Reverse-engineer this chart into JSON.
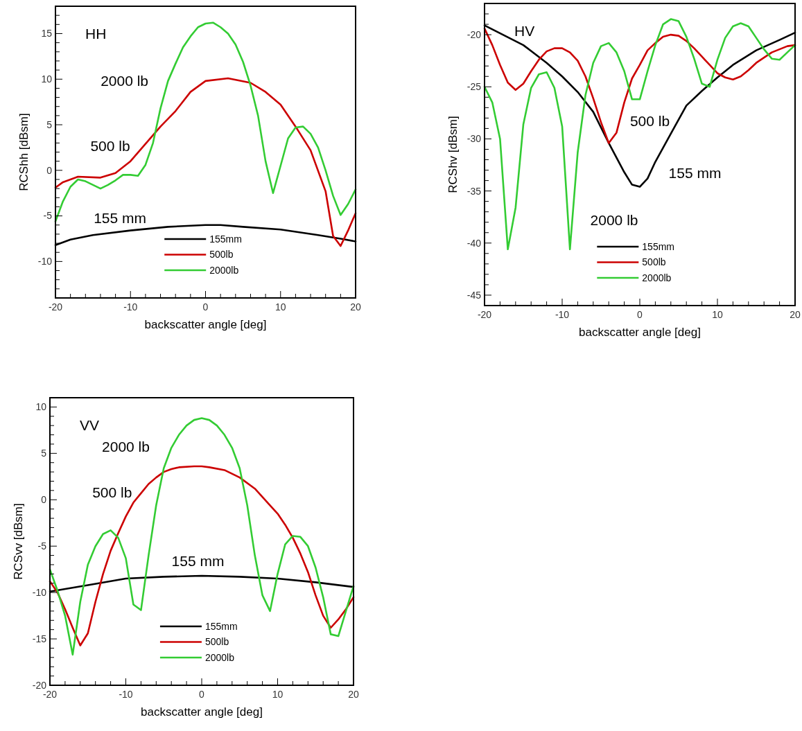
{
  "chart_data": [
    {
      "type": "line",
      "title": "HH",
      "xlabel": "backscatter angle [deg]",
      "ylabel": "RCShh [dBsm]",
      "legend": "bottom",
      "marker": "none",
      "line_style": "solid",
      "grid": false,
      "xlim": [
        -20,
        20
      ],
      "xticks": [
        -20,
        {
          "value": -18,
          "label": null
        },
        {
          "value": -16,
          "label": null
        },
        {
          "value": -14,
          "label": null
        },
        {
          "value": -12,
          "label": null
        },
        -10,
        {
          "value": -8,
          "label": null
        },
        {
          "value": -6,
          "label": null
        },
        {
          "value": -4,
          "label": null
        },
        {
          "value": -2,
          "label": null
        },
        0,
        {
          "value": 2,
          "label": null
        },
        {
          "value": 4,
          "label": null
        },
        {
          "value": 6,
          "label": null
        },
        {
          "value": 8,
          "label": null
        },
        10,
        {
          "value": 12,
          "label": null
        },
        {
          "value": 14,
          "label": null
        },
        {
          "value": 16,
          "label": null
        },
        {
          "value": 18,
          "label": null
        },
        20
      ],
      "ylim": [
        -14,
        18
      ],
      "yticks": [
        {
          "value": -14,
          "label": null
        },
        {
          "value": -13,
          "label": null
        },
        {
          "value": -12,
          "label": null
        },
        {
          "value": -11,
          "label": null
        },
        -10,
        {
          "value": -9,
          "label": null
        },
        {
          "value": -8,
          "label": null
        },
        {
          "value": -7,
          "label": null
        },
        {
          "value": -6,
          "label": null
        },
        -5,
        {
          "value": -4,
          "label": null
        },
        {
          "value": -3,
          "label": null
        },
        {
          "value": -2,
          "label": null
        },
        {
          "value": -1,
          "label": null
        },
        0,
        {
          "value": 1,
          "label": null
        },
        {
          "value": 2,
          "label": null
        },
        {
          "value": 3,
          "label": null
        },
        {
          "value": 4,
          "label": null
        },
        5,
        {
          "value": 6,
          "label": null
        },
        {
          "value": 7,
          "label": null
        },
        {
          "value": 8,
          "label": null
        },
        {
          "value": 9,
          "label": null
        },
        10,
        {
          "value": 11,
          "label": null
        },
        {
          "value": 12,
          "label": null
        },
        {
          "value": 13,
          "label": null
        },
        {
          "value": 14,
          "label": null
        },
        15,
        {
          "value": 16,
          "label": null
        },
        {
          "value": 17,
          "label": null
        },
        {
          "value": 18,
          "label": null
        }
      ],
      "annotations": [
        "2000 lb",
        "500 lb",
        "155 mm"
      ],
      "series": [
        {
          "name": "155mm",
          "color": "#000000",
          "x": [
            -20,
            -18,
            -15,
            -10,
            -5,
            0,
            2,
            5,
            10,
            15,
            18,
            20
          ],
          "values": [
            -8.2,
            -7.6,
            -7.1,
            -6.6,
            -6.2,
            -6.0,
            -6.0,
            -6.2,
            -6.5,
            -7.1,
            -7.5,
            -7.8
          ]
        },
        {
          "name": "500lb",
          "color": "#cc0000",
          "x": [
            -20,
            -19,
            -17,
            -14,
            -12,
            -10,
            -8,
            -6,
            -4,
            -2,
            0,
            3,
            6,
            8,
            10,
            12,
            14,
            16,
            17,
            18,
            19,
            20
          ],
          "values": [
            -1.9,
            -1.3,
            -0.7,
            -0.8,
            -0.3,
            1.0,
            2.9,
            4.8,
            6.5,
            8.6,
            9.8,
            10.1,
            9.6,
            8.6,
            7.2,
            4.8,
            2.2,
            -2.3,
            -7.2,
            -8.3,
            -6.6,
            -4.7
          ]
        },
        {
          "name": "2000lb",
          "color": "#33cc33",
          "x": [
            -20,
            -19,
            -18,
            -17,
            -16,
            -15,
            -14,
            -13,
            -12,
            -11,
            -10,
            -9,
            -8,
            -7,
            -6,
            -5,
            -4,
            -3,
            -2,
            -1,
            0,
            1,
            2,
            3,
            4,
            5,
            6,
            7,
            8,
            9,
            10,
            11,
            12,
            13,
            14,
            15,
            16,
            17,
            18,
            19,
            20
          ],
          "values": [
            -5.6,
            -3.4,
            -1.8,
            -1.0,
            -1.2,
            -1.6,
            -2.0,
            -1.6,
            -1.1,
            -0.5,
            -0.5,
            -0.6,
            0.6,
            3.0,
            6.8,
            9.8,
            11.7,
            13.5,
            14.7,
            15.7,
            16.1,
            16.2,
            15.7,
            15.0,
            13.8,
            11.9,
            9.3,
            6.0,
            1.0,
            -2.5,
            0.5,
            3.5,
            4.7,
            4.8,
            4.0,
            2.5,
            0.0,
            -2.8,
            -4.9,
            -3.7,
            -2.1
          ]
        }
      ]
    },
    {
      "type": "line",
      "title": "HV",
      "xlabel": "backscatter angle [deg]",
      "ylabel": "RCShv [dBsm]",
      "legend": "bottom",
      "marker": "none",
      "line_style": "solid",
      "grid": false,
      "xlim": [
        -20,
        20
      ],
      "xticks": [
        -20,
        {
          "value": -18,
          "label": null
        },
        {
          "value": -16,
          "label": null
        },
        {
          "value": -14,
          "label": null
        },
        {
          "value": -12,
          "label": null
        },
        -10,
        {
          "value": -8,
          "label": null
        },
        {
          "value": -6,
          "label": null
        },
        {
          "value": -4,
          "label": null
        },
        {
          "value": -2,
          "label": null
        },
        0,
        {
          "value": 2,
          "label": null
        },
        {
          "value": 4,
          "label": null
        },
        {
          "value": 6,
          "label": null
        },
        {
          "value": 8,
          "label": null
        },
        10,
        {
          "value": 12,
          "label": null
        },
        {
          "value": 14,
          "label": null
        },
        {
          "value": 16,
          "label": null
        },
        {
          "value": 18,
          "label": null
        },
        20
      ],
      "ylim": [
        -46,
        -17
      ],
      "yticks": [
        {
          "value": -46,
          "label": null
        },
        -45,
        {
          "value": -44,
          "label": null
        },
        {
          "value": -43,
          "label": null
        },
        {
          "value": -42,
          "label": null
        },
        {
          "value": -41,
          "label": null
        },
        -40,
        {
          "value": -39,
          "label": null
        },
        {
          "value": -38,
          "label": null
        },
        {
          "value": -37,
          "label": null
        },
        {
          "value": -36,
          "label": null
        },
        -35,
        {
          "value": -34,
          "label": null
        },
        {
          "value": -33,
          "label": null
        },
        {
          "value": -32,
          "label": null
        },
        {
          "value": -31,
          "label": null
        },
        -30,
        {
          "value": -29,
          "label": null
        },
        {
          "value": -28,
          "label": null
        },
        {
          "value": -27,
          "label": null
        },
        {
          "value": -26,
          "label": null
        },
        -25,
        {
          "value": -24,
          "label": null
        },
        {
          "value": -23,
          "label": null
        },
        {
          "value": -22,
          "label": null
        },
        {
          "value": -21,
          "label": null
        },
        -20,
        {
          "value": -19,
          "label": null
        },
        {
          "value": -18,
          "label": null
        },
        {
          "value": -17,
          "label": null
        }
      ],
      "annotations": [
        "500 lb",
        "155 mm",
        "2000 lb"
      ],
      "series": [
        {
          "name": "155mm",
          "color": "#000000",
          "x": [
            -20,
            -15,
            -12,
            -10,
            -8,
            -6,
            -4,
            -2,
            -1,
            0,
            1,
            2,
            4,
            6,
            8,
            10,
            12,
            15,
            18,
            20
          ],
          "values": [
            -19.1,
            -21.0,
            -22.7,
            -24.0,
            -25.5,
            -27.4,
            -30.4,
            -33.2,
            -34.4,
            -34.6,
            -33.8,
            -32.2,
            -29.5,
            -26.8,
            -25.4,
            -24.1,
            -22.9,
            -21.5,
            -20.5,
            -19.8
          ]
        },
        {
          "name": "500lb",
          "color": "#cc0000",
          "x": [
            -20,
            -19,
            -18,
            -17,
            -16,
            -15,
            -14,
            -13,
            -12,
            -11,
            -10,
            -9,
            -8,
            -7,
            -6,
            -5,
            -4,
            -3,
            -2,
            -1,
            0,
            1,
            2,
            3,
            4,
            5,
            6,
            7,
            8,
            9,
            10,
            11,
            12,
            13,
            14,
            15,
            16,
            17,
            18,
            19,
            20
          ],
          "values": [
            -19.4,
            -21.0,
            -22.9,
            -24.6,
            -25.3,
            -24.7,
            -23.5,
            -22.4,
            -21.6,
            -21.3,
            -21.3,
            -21.7,
            -22.5,
            -24.0,
            -26.1,
            -28.4,
            -30.4,
            -29.4,
            -26.5,
            -24.2,
            -22.9,
            -21.5,
            -20.8,
            -20.2,
            -20.0,
            -20.1,
            -20.6,
            -21.3,
            -22.1,
            -22.9,
            -23.7,
            -24.1,
            -24.3,
            -24.0,
            -23.4,
            -22.7,
            -22.2,
            -21.7,
            -21.4,
            -21.1,
            -21.0
          ]
        },
        {
          "name": "2000lb",
          "color": "#33cc33",
          "x": [
            -20,
            -19,
            -18,
            -17,
            -16,
            -15,
            -14,
            -13,
            -12,
            -11,
            -10,
            -9,
            -8,
            -7,
            -6,
            -5,
            -4,
            -3,
            -2,
            -1,
            0,
            1,
            2,
            3,
            4,
            5,
            6,
            7,
            8,
            9,
            10,
            11,
            12,
            13,
            14,
            15,
            16,
            17,
            18,
            19,
            20
          ],
          "values": [
            -25.0,
            -26.5,
            -30.0,
            -40.6,
            -36.6,
            -28.6,
            -25.1,
            -23.8,
            -23.6,
            -25.1,
            -28.8,
            -40.6,
            -31.3,
            -25.8,
            -22.7,
            -21.1,
            -20.8,
            -21.7,
            -23.5,
            -26.2,
            -26.2,
            -23.5,
            -21.0,
            -19.0,
            -18.5,
            -18.7,
            -20.2,
            -22.3,
            -24.7,
            -25.0,
            -22.4,
            -20.3,
            -19.2,
            -18.9,
            -19.2,
            -20.3,
            -21.4,
            -22.3,
            -22.4,
            -21.7,
            -21.0
          ]
        }
      ]
    },
    {
      "type": "line",
      "title": "VV",
      "xlabel": "backscatter angle [deg]",
      "ylabel": "RCSvv [dBsm]",
      "legend": "bottom",
      "marker": "none",
      "line_style": "solid",
      "grid": false,
      "xlim": [
        -20,
        20
      ],
      "xticks": [
        -20,
        {
          "value": -18,
          "label": null
        },
        {
          "value": -16,
          "label": null
        },
        {
          "value": -14,
          "label": null
        },
        {
          "value": -12,
          "label": null
        },
        -10,
        {
          "value": -8,
          "label": null
        },
        {
          "value": -6,
          "label": null
        },
        {
          "value": -4,
          "label": null
        },
        {
          "value": -2,
          "label": null
        },
        0,
        {
          "value": 2,
          "label": null
        },
        {
          "value": 4,
          "label": null
        },
        {
          "value": 6,
          "label": null
        },
        {
          "value": 8,
          "label": null
        },
        10,
        {
          "value": 12,
          "label": null
        },
        {
          "value": 14,
          "label": null
        },
        {
          "value": 16,
          "label": null
        },
        {
          "value": 18,
          "label": null
        },
        20
      ],
      "ylim": [
        -20,
        11
      ],
      "yticks": [
        -20,
        {
          "value": -19,
          "label": null
        },
        {
          "value": -18,
          "label": null
        },
        {
          "value": -17,
          "label": null
        },
        {
          "value": -16,
          "label": null
        },
        -15,
        {
          "value": -14,
          "label": null
        },
        {
          "value": -13,
          "label": null
        },
        {
          "value": -12,
          "label": null
        },
        {
          "value": -11,
          "label": null
        },
        -10,
        {
          "value": -9,
          "label": null
        },
        {
          "value": -8,
          "label": null
        },
        {
          "value": -7,
          "label": null
        },
        {
          "value": -6,
          "label": null
        },
        -5,
        {
          "value": -4,
          "label": null
        },
        {
          "value": -3,
          "label": null
        },
        {
          "value": -2,
          "label": null
        },
        {
          "value": -1,
          "label": null
        },
        0,
        {
          "value": 1,
          "label": null
        },
        {
          "value": 2,
          "label": null
        },
        {
          "value": 3,
          "label": null
        },
        {
          "value": 4,
          "label": null
        },
        5,
        {
          "value": 6,
          "label": null
        },
        {
          "value": 7,
          "label": null
        },
        {
          "value": 8,
          "label": null
        },
        {
          "value": 9,
          "label": null
        },
        10,
        {
          "value": 11,
          "label": null
        }
      ],
      "annotations": [
        "2000 lb",
        "500 lb",
        "155 mm"
      ],
      "series": [
        {
          "name": "155mm",
          "color": "#000000",
          "x": [
            -20,
            -15,
            -10,
            -5,
            0,
            5,
            10,
            15,
            20
          ],
          "values": [
            -9.9,
            -9.2,
            -8.5,
            -8.3,
            -8.2,
            -8.3,
            -8.5,
            -8.9,
            -9.4
          ]
        },
        {
          "name": "500lb",
          "color": "#cc0000",
          "x": [
            -20,
            -19,
            -18,
            -17,
            -16,
            -15,
            -14,
            -13,
            -12,
            -11,
            -10,
            -9,
            -8,
            -7,
            -6,
            -5,
            -4,
            -3,
            -1,
            0,
            1,
            3,
            5,
            7,
            9,
            10,
            11,
            12,
            13,
            14,
            15,
            16,
            17,
            18,
            19,
            20
          ],
          "values": [
            -8.8,
            -10.0,
            -11.8,
            -13.8,
            -15.7,
            -14.4,
            -11.0,
            -8.0,
            -5.5,
            -3.6,
            -1.8,
            -0.3,
            0.7,
            1.7,
            2.4,
            3.0,
            3.3,
            3.5,
            3.6,
            3.6,
            3.5,
            3.2,
            2.4,
            1.2,
            -0.6,
            -1.5,
            -2.7,
            -4.1,
            -5.8,
            -7.8,
            -10.3,
            -12.5,
            -13.8,
            -12.9,
            -11.8,
            -10.5
          ]
        },
        {
          "name": "2000lb",
          "color": "#33cc33",
          "x": [
            -20,
            -19,
            -18,
            -17,
            -16,
            -15,
            -14,
            -13,
            -12,
            -11,
            -10,
            -9,
            -8,
            -7,
            -6,
            -5,
            -4,
            -3,
            -2,
            -1,
            0,
            1,
            2,
            3,
            4,
            5,
            6,
            7,
            8,
            9,
            10,
            11,
            12,
            13,
            14,
            15,
            16,
            17,
            18,
            19,
            20
          ],
          "values": [
            -7.5,
            -9.8,
            -12.5,
            -16.7,
            -11.0,
            -7.0,
            -5.0,
            -3.7,
            -3.3,
            -4.1,
            -6.3,
            -11.3,
            -11.9,
            -6.0,
            -0.6,
            3.4,
            5.6,
            7.0,
            8.0,
            8.6,
            8.8,
            8.6,
            8.0,
            7.0,
            5.6,
            3.4,
            -0.6,
            -6.0,
            -10.3,
            -12.0,
            -8.0,
            -4.8,
            -3.9,
            -4.0,
            -5.0,
            -7.3,
            -10.5,
            -14.5,
            -14.7,
            -12.0,
            -9.3
          ]
        }
      ]
    }
  ]
}
